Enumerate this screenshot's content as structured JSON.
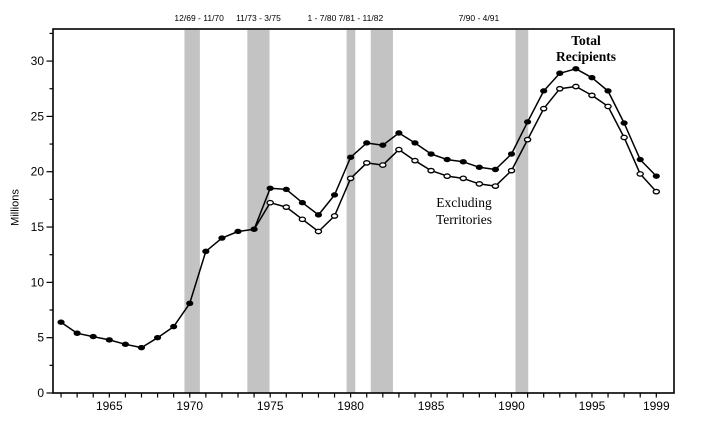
{
  "chart_data": {
    "type": "line",
    "title": "",
    "xlabel": "",
    "ylabel": "Millions",
    "xlim": [
      1961.5,
      2000.1
    ],
    "ylim": [
      0,
      32.9
    ],
    "grid": false,
    "background": "#ffffff",
    "line_color": "#000000",
    "band_color": "#c3c3c3",
    "band_alignment_offset_years": -0.25,
    "y_major_ticks": [
      0,
      5,
      10,
      15,
      20,
      25,
      30
    ],
    "y_minor_ticks": [
      2.5,
      7.5,
      12.5,
      17.5,
      22.5,
      27.5,
      32.5
    ],
    "x_tick_years_start": 1962,
    "x_tick_years_end": 1999,
    "x_labeled_ticks": [
      1965,
      1970,
      1975,
      1980,
      1985,
      1990,
      1995,
      1999
    ],
    "recession_bands": [
      {
        "label": "12/69 - 11/70",
        "start_year": 1969.92,
        "end_year": 1970.88,
        "label_dx": 7
      },
      {
        "label": "11/73 - 3/75",
        "start_year": 1973.83,
        "end_year": 1975.21,
        "label_dx": 0
      },
      {
        "label": "1 - 7/80",
        "start_year": 1980.0,
        "end_year": 1980.54,
        "label_dx": -29
      },
      {
        "label": "7/81 - 11/82",
        "start_year": 1981.5,
        "end_year": 1982.88,
        "label_dx": -21
      },
      {
        "label": "7/90 - 4/91",
        "start_year": 1990.5,
        "end_year": 1991.29,
        "label_dx": -43
      }
    ],
    "series": [
      {
        "name": "Excluding Territories",
        "marker": "open-ellipse",
        "marker_start_year": 1975,
        "color": "#000000",
        "x": [
          1974,
          1975,
          1976,
          1977,
          1978,
          1979,
          1980,
          1981,
          1982,
          1983,
          1984,
          1985,
          1986,
          1987,
          1988,
          1989,
          1990,
          1991,
          1992,
          1993,
          1994,
          1995,
          1996,
          1997,
          1998,
          1999
        ],
        "values": [
          14.8,
          17.2,
          16.8,
          15.7,
          14.6,
          16.0,
          19.4,
          20.8,
          20.6,
          22.0,
          21.0,
          20.1,
          19.6,
          19.4,
          18.9,
          18.7,
          20.1,
          22.9,
          25.7,
          27.5,
          27.7,
          26.9,
          25.9,
          23.1,
          19.8,
          18.2
        ]
      },
      {
        "name": "Total Recipients",
        "marker": "filled-ellipse",
        "marker_start_year": 1962,
        "color": "#000000",
        "x": [
          1962,
          1963,
          1964,
          1965,
          1966,
          1967,
          1968,
          1969,
          1970,
          1971,
          1972,
          1973,
          1974,
          1975,
          1976,
          1977,
          1978,
          1979,
          1980,
          1981,
          1982,
          1983,
          1984,
          1985,
          1986,
          1987,
          1988,
          1989,
          1990,
          1991,
          1992,
          1993,
          1994,
          1995,
          1996,
          1997,
          1998,
          1999
        ],
        "values": [
          6.4,
          5.4,
          5.1,
          4.8,
          4.4,
          4.1,
          5.0,
          6.0,
          8.1,
          12.8,
          14.0,
          14.6,
          14.8,
          18.5,
          18.4,
          17.2,
          16.1,
          17.9,
          21.3,
          22.6,
          22.4,
          23.5,
          22.6,
          21.6,
          21.1,
          20.9,
          20.4,
          20.2,
          21.6,
          24.5,
          27.3,
          28.9,
          29.3,
          28.5,
          27.3,
          24.4,
          21.1,
          19.6
        ]
      }
    ],
    "annotations": {
      "total": {
        "lines": [
          "Total",
          "Recipients"
        ]
      },
      "excluding": {
        "lines": [
          "Excluding",
          "Territories"
        ]
      }
    }
  }
}
